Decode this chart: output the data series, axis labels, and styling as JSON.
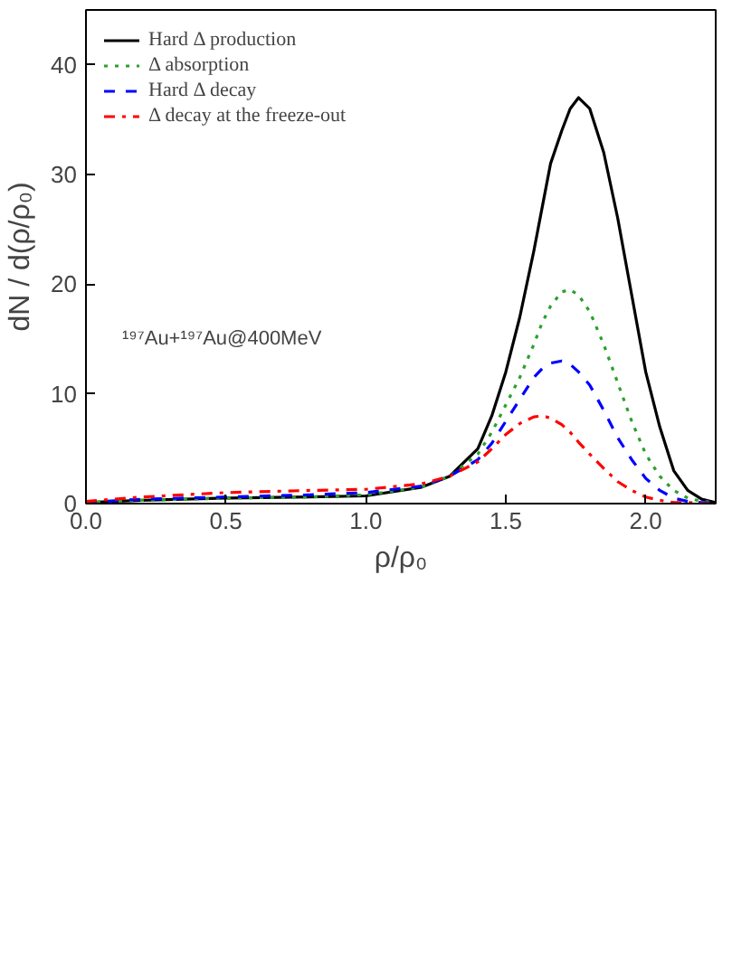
{
  "chart_data": {
    "type": "line",
    "xlabel": "ρ/ρ₀",
    "ylabel": "dN / d(ρ/ρ₀)",
    "xlim": [
      0,
      2.25
    ],
    "ylim": [
      0,
      45
    ],
    "xticks": [
      {
        "value": 0,
        "label": "0.0"
      },
      {
        "value": 0.5,
        "label": "0.5"
      },
      {
        "value": 1,
        "label": "1.0"
      },
      {
        "value": 1.5,
        "label": "1.5"
      },
      {
        "value": 2,
        "label": "2.0"
      }
    ],
    "yticks": [
      0,
      10,
      20,
      30,
      40
    ],
    "grid": false,
    "legend": "top left",
    "annotations": [
      "¹⁹⁷Au+¹⁹⁷Au@400MeV"
    ],
    "x": [
      0,
      0.2,
      0.5,
      0.8,
      1.0,
      1.2,
      1.3,
      1.4,
      1.45,
      1.5,
      1.55,
      1.6,
      1.63,
      1.66,
      1.7,
      1.73,
      1.76,
      1.8,
      1.85,
      1.9,
      1.95,
      2.0,
      2.05,
      2.1,
      2.15,
      2.2,
      2.25
    ],
    "series": [
      {
        "name": "Hard Δ production",
        "color": "#000000",
        "line_style": "solid",
        "values": [
          0.1,
          0.3,
          0.5,
          0.6,
          0.7,
          1.5,
          2.5,
          5,
          8,
          12,
          17,
          23,
          27,
          31,
          34,
          36,
          37,
          36,
          32,
          26,
          19,
          12,
          7,
          3,
          1.2,
          0.4,
          0.1
        ]
      },
      {
        "name": "Δ absorption",
        "color": "#2ca02c",
        "line_style": "dotted",
        "values": [
          0.1,
          0.3,
          0.5,
          0.6,
          0.8,
          1.5,
          2.5,
          4.5,
          6.5,
          9,
          11.5,
          14.5,
          16.5,
          18,
          19.3,
          19.5,
          19,
          17.5,
          14.5,
          11,
          7.5,
          4.5,
          2.5,
          1.2,
          0.5,
          0.2,
          0.1
        ]
      },
      {
        "name": "Hard Δ decay",
        "color": "#0000ff",
        "line_style": "dashed",
        "values": [
          0.1,
          0.4,
          0.6,
          0.8,
          1,
          1.6,
          2.5,
          4,
          5.5,
          7.5,
          9.5,
          11.5,
          12.3,
          12.8,
          13,
          12.7,
          12,
          10.8,
          8.5,
          6,
          4,
          2.3,
          1.2,
          0.5,
          0.2,
          0.1,
          0
        ]
      },
      {
        "name": "Δ decay at the freeze-out",
        "color": "#ff0000",
        "line_style": "dashdot",
        "values": [
          0.2,
          0.6,
          1,
          1.2,
          1.3,
          1.8,
          2.5,
          3.8,
          5,
          6.3,
          7.3,
          7.9,
          8,
          7.8,
          7.2,
          6.5,
          5.6,
          4.5,
          3.2,
          2,
          1.2,
          0.6,
          0.3,
          0.1,
          0.1,
          0,
          0
        ]
      }
    ]
  }
}
